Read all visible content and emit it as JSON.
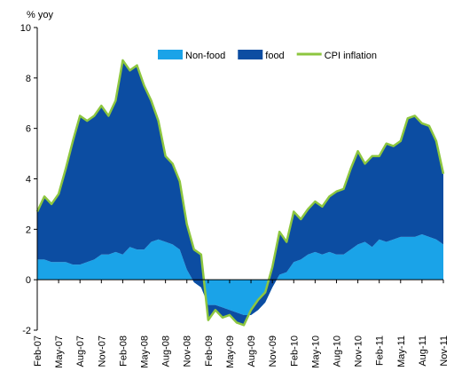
{
  "chart_data": {
    "type": "stacked_area_line",
    "y_axis_label": "% yoy",
    "categories": [
      "Feb-07",
      null,
      null,
      "May-07",
      null,
      null,
      "Aug-07",
      null,
      null,
      "Nov-07",
      null,
      null,
      "Feb-08",
      null,
      null,
      "May-08",
      null,
      null,
      "Aug-08",
      null,
      null,
      "Nov-08",
      null,
      null,
      "Feb-09",
      null,
      null,
      "May-09",
      null,
      null,
      "Aug-09",
      null,
      null,
      "Nov-09",
      null,
      null,
      "Feb-10",
      null,
      null,
      "May-10",
      null,
      null,
      "Aug-10",
      null,
      null,
      "Nov-10",
      null,
      null,
      "Feb-11",
      null,
      null,
      "May-11",
      null,
      null,
      "Aug-11",
      null,
      null,
      "Nov-11"
    ],
    "series": [
      {
        "name": "Non-food",
        "color": "#1aa3e8",
        "kind": "area",
        "values": [
          0.8,
          0.8,
          0.7,
          0.7,
          0.7,
          0.6,
          0.6,
          0.7,
          0.8,
          1.0,
          1.0,
          1.1,
          1.0,
          1.3,
          1.2,
          1.2,
          1.5,
          1.6,
          1.5,
          1.4,
          1.2,
          0.4,
          -0.1,
          -0.3,
          -1.0,
          -1.0,
          -1.1,
          -1.2,
          -1.3,
          -1.4,
          -1.4,
          -1.2,
          -0.9,
          -0.3,
          0.2,
          0.3,
          0.7,
          0.8,
          1.0,
          1.1,
          1.0,
          1.1,
          1.0,
          1.0,
          1.2,
          1.4,
          1.5,
          1.3,
          1.6,
          1.5,
          1.6,
          1.7,
          1.7,
          1.7,
          1.8,
          1.7,
          1.6,
          1.4
        ]
      },
      {
        "name": "food",
        "color": "#0c4da2",
        "kind": "area",
        "values": [
          1.9,
          2.5,
          2.3,
          2.7,
          3.7,
          4.9,
          5.9,
          5.6,
          5.7,
          5.9,
          5.5,
          6.0,
          7.7,
          7.0,
          7.3,
          6.5,
          5.6,
          4.7,
          3.4,
          3.2,
          2.7,
          1.8,
          1.3,
          1.3,
          -0.6,
          -0.2,
          -0.4,
          -0.2,
          -0.4,
          -0.4,
          0.2,
          0.4,
          0.4,
          0.8,
          1.7,
          1.2,
          2.0,
          1.6,
          1.8,
          2.0,
          1.9,
          2.2,
          2.5,
          2.6,
          3.2,
          3.7,
          3.1,
          3.6,
          3.3,
          3.9,
          3.7,
          3.8,
          4.7,
          4.8,
          4.4,
          4.4,
          3.9,
          2.8
        ]
      },
      {
        "name": "CPI inflation",
        "color": "#8dc63f",
        "kind": "line",
        "values": [
          2.7,
          3.3,
          3.0,
          3.4,
          4.4,
          5.5,
          6.5,
          6.3,
          6.5,
          6.9,
          6.5,
          7.1,
          8.7,
          8.3,
          8.5,
          7.7,
          7.1,
          6.3,
          4.9,
          4.6,
          3.9,
          2.2,
          1.2,
          1.0,
          -1.6,
          -1.2,
          -1.5,
          -1.4,
          -1.7,
          -1.8,
          -1.2,
          -0.8,
          -0.5,
          0.5,
          1.9,
          1.5,
          2.7,
          2.4,
          2.8,
          3.1,
          2.9,
          3.3,
          3.5,
          3.6,
          4.4,
          5.1,
          4.6,
          4.9,
          4.9,
          5.4,
          5.3,
          5.5,
          6.4,
          6.5,
          6.2,
          6.1,
          5.5,
          4.2
        ]
      }
    ],
    "ylim": [
      -2,
      10
    ],
    "yticks": [
      -2,
      0,
      2,
      4,
      6,
      8,
      10
    ],
    "legend": "top-right",
    "grid": false
  }
}
